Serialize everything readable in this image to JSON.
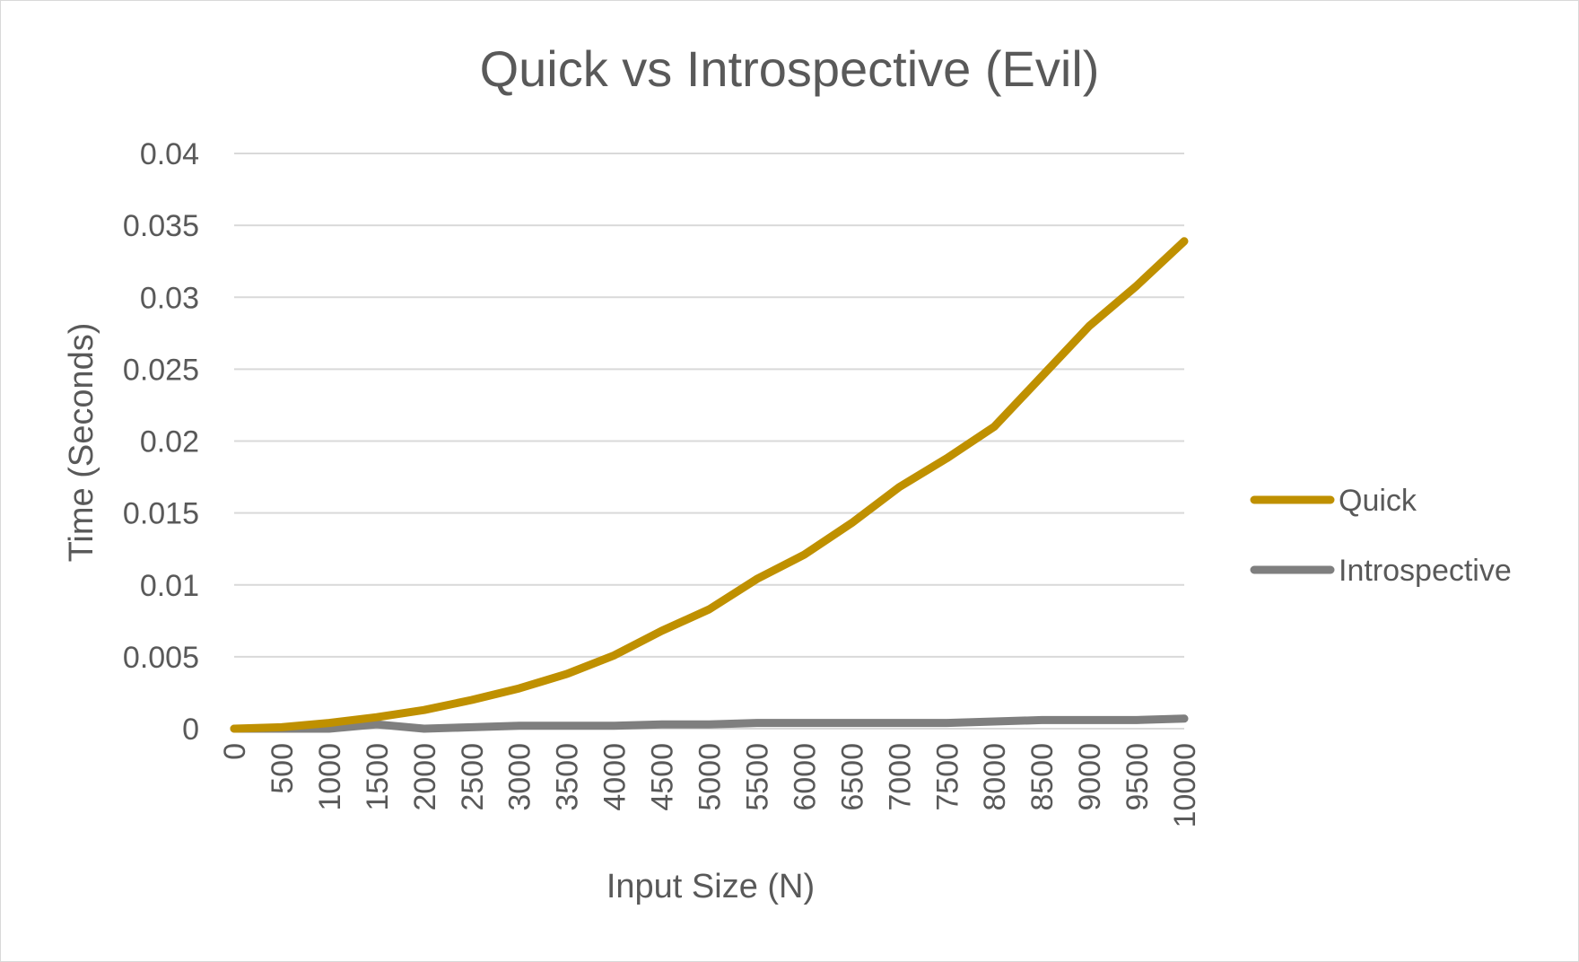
{
  "chart_data": {
    "type": "line",
    "title": "Quick vs Introspective (Evil)",
    "xlabel": "Input Size (N)",
    "ylabel": "Time (Seconds)",
    "xlim": [
      0,
      10000
    ],
    "ylim": [
      0,
      0.04
    ],
    "y_ticks": [
      "0",
      "0.005",
      "0.01",
      "0.015",
      "0.02",
      "0.025",
      "0.03",
      "0.035",
      "0.04"
    ],
    "y_tick_values": [
      0,
      0.005,
      0.01,
      0.015,
      0.02,
      0.025,
      0.03,
      0.035,
      0.04
    ],
    "x_ticks": [
      "0",
      "500",
      "1000",
      "1500",
      "2000",
      "2500",
      "3000",
      "3500",
      "4000",
      "4500",
      "5000",
      "5500",
      "6000",
      "6500",
      "7000",
      "7500",
      "8000",
      "8500",
      "9000",
      "9500",
      "10000"
    ],
    "x_tick_values": [
      0,
      500,
      1000,
      1500,
      2000,
      2500,
      3000,
      3500,
      4000,
      4500,
      5000,
      5500,
      6000,
      6500,
      7000,
      7500,
      8000,
      8500,
      9000,
      9500,
      10000
    ],
    "grid": true,
    "legend_position": "right",
    "x": [
      0,
      500,
      1000,
      1500,
      2000,
      2500,
      3000,
      3500,
      4000,
      4500,
      5000,
      5500,
      6000,
      6500,
      7000,
      7500,
      8000,
      8500,
      9000,
      9500,
      10000
    ],
    "series": [
      {
        "name": "Quick",
        "color": "#bf9000",
        "values": [
          0,
          0.0001,
          0.0004,
          0.0008,
          0.0013,
          0.002,
          0.0028,
          0.0038,
          0.0051,
          0.0068,
          0.0083,
          0.0104,
          0.0121,
          0.0143,
          0.0168,
          0.0188,
          0.021,
          0.0245,
          0.028,
          0.0308,
          0.0339
        ]
      },
      {
        "name": "Introspective",
        "color": "#7f7f7f",
        "values": [
          0,
          0,
          0,
          0.0003,
          0,
          0.0001,
          0.0002,
          0.0002,
          0.0002,
          0.0003,
          0.0003,
          0.0004,
          0.0004,
          0.0004,
          0.0004,
          0.0004,
          0.0005,
          0.0006,
          0.0006,
          0.0006,
          0.0007
        ]
      }
    ]
  }
}
